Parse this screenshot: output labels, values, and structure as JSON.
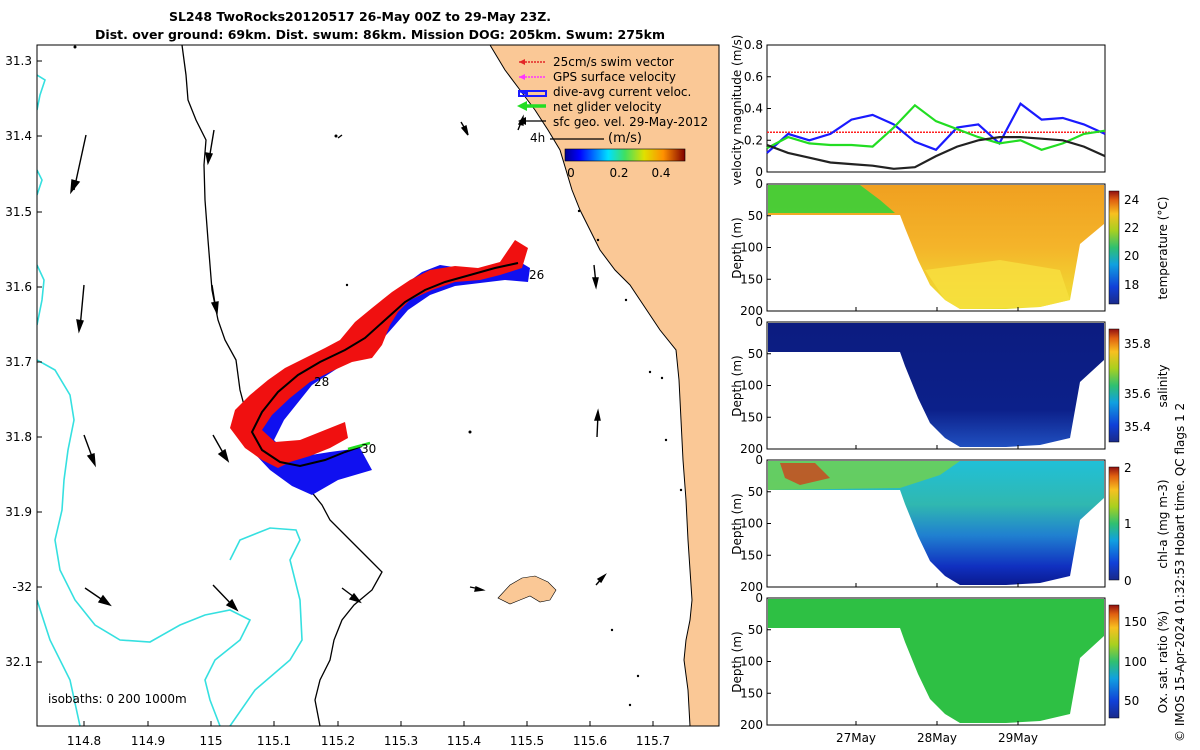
{
  "header": {
    "title_line1": "SL248 TwoRocks20120517 26-May 00Z to 29-May 23Z.",
    "title_line2": "Dist. over ground: 69km. Dist. swum: 86km. Mission DOG: 205km. Swum: 275km"
  },
  "map": {
    "lon_ticks": [
      "114.8",
      "114.9",
      "115",
      "115.1",
      "115.2",
      "115.3",
      "115.4",
      "115.5",
      "115.6",
      "115.7"
    ],
    "lat_ticks": [
      "31.3",
      "31.4",
      "31.5",
      "31.6",
      "31.7",
      "31.8",
      "31.9",
      "-32",
      "32.1"
    ],
    "isobaths_label": "isobaths: 0   200  1000m",
    "legend": [
      {
        "label": "25cm/s swim vector",
        "color": "#e32626"
      },
      {
        "label": "GPS surface velocity",
        "color": "#ff33ff"
      },
      {
        "label": "dive-avg current veloc.",
        "color": "#1a1aff"
      },
      {
        "label": "net glider velocity",
        "color": "#22dd22"
      },
      {
        "label": "sfc geo. vel. 29-May-2012",
        "color": "#000000"
      }
    ],
    "scale_label": "4h",
    "colorbar": {
      "title": "(m/s)",
      "ticks": [
        "0",
        "0.2",
        "0.4"
      ]
    },
    "day_labels": [
      "26",
      "28",
      "30"
    ],
    "colors": {
      "land": "#fac896",
      "isobath": "#35e0e0",
      "track_red": "#f01010",
      "track_blue": "#1010f0"
    }
  },
  "chart_data": [
    {
      "type": "line",
      "title": "velocity magnitude",
      "ylabel": "velocity magnitude (m/s)",
      "ylim": [
        0,
        0.8
      ],
      "yticks": [
        "0",
        "0.2",
        "0.4",
        "0.6",
        "0.8"
      ],
      "x_days": [
        26,
        26.25,
        26.5,
        26.75,
        27,
        27.25,
        27.5,
        27.75,
        28,
        28.25,
        28.5,
        28.75,
        29,
        29.25,
        29.5,
        29.75,
        30
      ],
      "series": [
        {
          "name": "25cm/s swim vector",
          "color": "#ff2020",
          "values": [
            0.25,
            0.25,
            0.25,
            0.25,
            0.25,
            0.25,
            0.25,
            0.25,
            0.25,
            0.25,
            0.25,
            0.25,
            0.25,
            0.25,
            0.25,
            0.25,
            0.25
          ]
        },
        {
          "name": "dive-avg current veloc.",
          "color": "#1a1aff",
          "values": [
            0.12,
            0.24,
            0.2,
            0.24,
            0.33,
            0.36,
            0.3,
            0.19,
            0.14,
            0.28,
            0.3,
            0.18,
            0.43,
            0.33,
            0.34,
            0.3,
            0.24
          ]
        },
        {
          "name": "net glider velocity",
          "color": "#22dd22",
          "values": [
            0.15,
            0.22,
            0.18,
            0.17,
            0.17,
            0.16,
            0.28,
            0.42,
            0.32,
            0.27,
            0.22,
            0.18,
            0.2,
            0.14,
            0.18,
            0.24,
            0.26
          ]
        },
        {
          "name": "sfc geo. vel.",
          "color": "#222222",
          "values": [
            0.17,
            0.12,
            0.09,
            0.06,
            0.05,
            0.04,
            0.02,
            0.03,
            0.1,
            0.16,
            0.2,
            0.22,
            0.22,
            0.21,
            0.2,
            0.16,
            0.1
          ]
        }
      ]
    },
    {
      "type": "heatmap",
      "ylabel": "Depth (m)",
      "yticks": [
        "0",
        "50",
        "100",
        "150",
        "200"
      ],
      "cbar_label": "temperature (°C)",
      "cbar_ticks": [
        "24",
        "22",
        "20",
        "18"
      ]
    },
    {
      "type": "heatmap",
      "ylabel": "Depth (m)",
      "yticks": [
        "0",
        "50",
        "100",
        "150",
        "200"
      ],
      "cbar_label": "salinity",
      "cbar_ticks": [
        "35.8",
        "35.6",
        "35.4"
      ]
    },
    {
      "type": "heatmap",
      "ylabel": "Depth (m)",
      "yticks": [
        "0",
        "50",
        "100",
        "150",
        "200"
      ],
      "cbar_label": "chl-a (mg m-3)",
      "cbar_ticks": [
        "2",
        "1",
        "0"
      ]
    },
    {
      "type": "heatmap",
      "ylabel": "Depth (m)",
      "yticks": [
        "0",
        "50",
        "100",
        "150",
        "200"
      ],
      "cbar_label": "Ox. sat. ratio (%)",
      "cbar_ticks": [
        "150",
        "100",
        "50"
      ],
      "xticks": [
        "27May",
        "28May",
        "29May"
      ]
    }
  ],
  "footer": {
    "credit": "© IMOS 15-Apr-2024 01:32:53 Hobart time. QC flags 1  2"
  }
}
